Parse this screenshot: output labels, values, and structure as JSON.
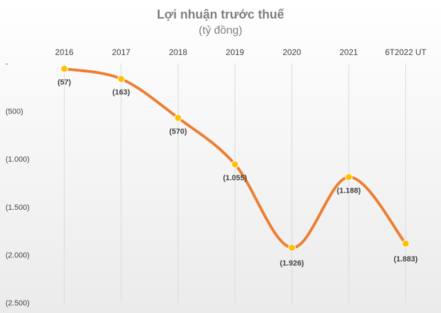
{
  "chart_data": {
    "type": "line",
    "title": "Lợi nhuận trước thuế",
    "subtitle": "(tỷ đồng)",
    "xlabel": "",
    "ylabel": "",
    "categories": [
      "2016",
      "2017",
      "2018",
      "2019",
      "2020",
      "2021",
      "6T2022 UT"
    ],
    "series": [
      {
        "values": [
          -57,
          -163,
          -570,
          -1055,
          -1926,
          -1188,
          -1883
        ],
        "labels": [
          "(57)",
          "(163)",
          "(570)",
          "(1.055)",
          "(1.926)",
          "(1.188)",
          "(1.883)"
        ],
        "color": "#ed7d31",
        "marker_color": "#ffc000",
        "smooth": true
      }
    ],
    "y_ticks": [
      {
        "value": 0,
        "label": "-"
      },
      {
        "value": -500,
        "label": "(500)"
      },
      {
        "value": -1000,
        "label": "(1.000)"
      },
      {
        "value": -1500,
        "label": "(1.500)"
      },
      {
        "value": -2000,
        "label": "(2.000)"
      },
      {
        "value": -2500,
        "label": "(2.500)"
      }
    ],
    "ylim": [
      -2500,
      0
    ],
    "x_axis_position": "top",
    "grid": "vertical",
    "legend": "none"
  }
}
